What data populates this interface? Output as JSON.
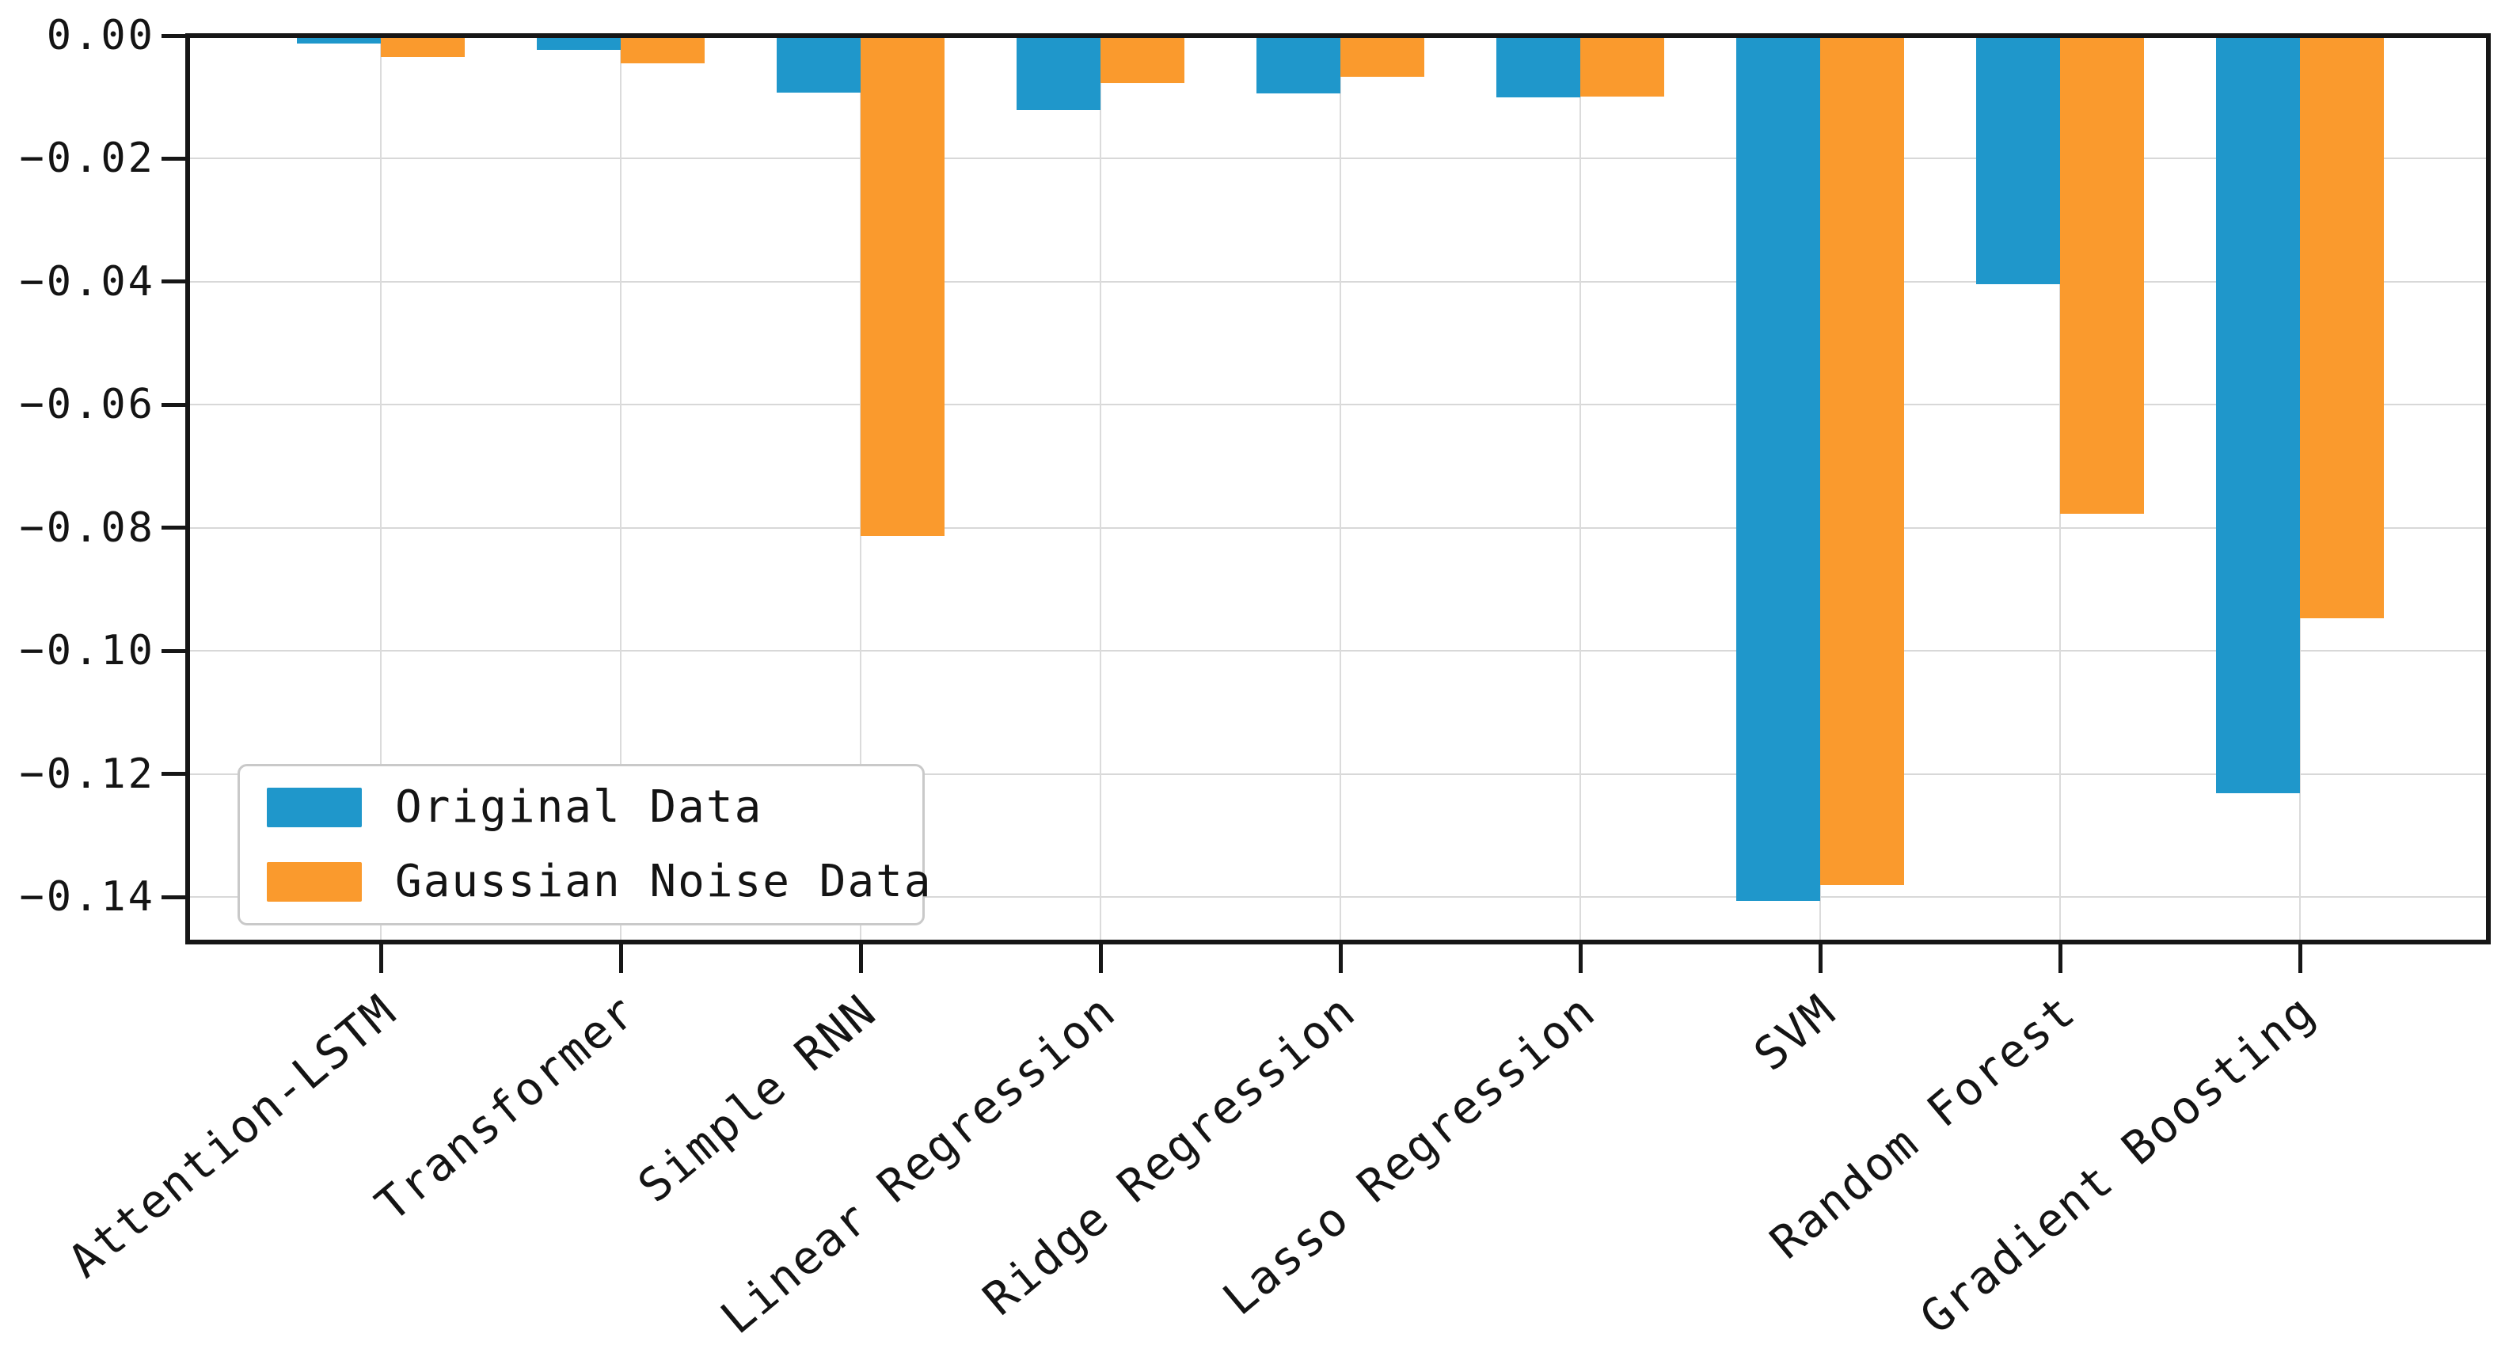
{
  "chart_data": {
    "type": "bar",
    "title": "",
    "xlabel": "",
    "ylabel": "",
    "categories": [
      "Attention-LSTM",
      "Transformer",
      "Simple RNN",
      "Linear Regression",
      "Ridge Regression",
      "Lasso Regression",
      "SVM",
      "Random Forest",
      "Gradient Boosting"
    ],
    "series": [
      {
        "name": "Original Data",
        "color": "#1f97cb",
        "values": [
          -0.001,
          -0.002,
          -0.009,
          -0.0118,
          -0.0091,
          -0.0098,
          -0.1403,
          -0.0402,
          -0.1228
        ]
      },
      {
        "name": "Gaussian Noise Data",
        "color": "#fa9a2d",
        "values": [
          -0.0032,
          -0.0042,
          -0.081,
          -0.0074,
          -0.0064,
          -0.0096,
          -0.1378,
          -0.0775,
          -0.0944
        ]
      }
    ],
    "ylim": [
      -0.1473,
      0.0
    ],
    "ytick_values": [
      0.0,
      -0.02,
      -0.04,
      -0.06,
      -0.08,
      -0.1,
      -0.12,
      -0.14
    ],
    "ytick_labels": [
      "0.00",
      "−0.02",
      "−0.04",
      "−0.06",
      "−0.08",
      "−0.10",
      "−0.12",
      "−0.14"
    ],
    "grid": true,
    "legend_position": "lower left",
    "xtick_rotation_deg": 40
  }
}
